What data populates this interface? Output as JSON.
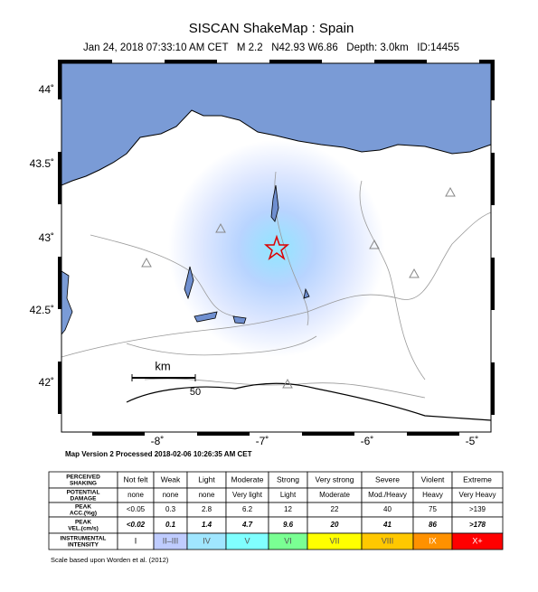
{
  "header": {
    "title": "SISCAN ShakeMap : Spain",
    "subtitle": "Jan 24, 2018 07:33:10 AM CET   M 2.2   N42.93 W6.86   Depth: 3.0km   ID:14455"
  },
  "map": {
    "lat_ticks": [
      "44˚",
      "43.5˚",
      "43˚",
      "42.5˚",
      "42˚"
    ],
    "lon_ticks": [
      "-8˚",
      "-7˚",
      "-6˚",
      "-5˚"
    ],
    "scale_label": "km",
    "scale_value": "50"
  },
  "version": "Map Version 2 Processed 2018-02-06 10:26:35 AM CET",
  "legend": {
    "rows": [
      [
        "PERCEIVED SHAKING",
        "Not felt",
        "Weak",
        "Light",
        "Moderate",
        "Strong",
        "Very strong",
        "Severe",
        "Violent",
        "Extreme"
      ],
      [
        "POTENTIAL DAMAGE",
        "none",
        "none",
        "none",
        "Very light",
        "Light",
        "Moderate",
        "Mod./Heavy",
        "Heavy",
        "Very Heavy"
      ],
      [
        "PEAK ACC.(%g)",
        "<0.05",
        "0.3",
        "2.8",
        "6.2",
        "12",
        "22",
        "40",
        "75",
        ">139"
      ],
      [
        "PEAK VEL.(cm/s)",
        "<0.02",
        "0.1",
        "1.4",
        "4.7",
        "9.6",
        "20",
        "41",
        "86",
        ">178"
      ],
      [
        "INSTRUMENTAL INTENSITY",
        "I",
        "II–III",
        "IV",
        "V",
        "VI",
        "VII",
        "VIII",
        "IX",
        "X+"
      ]
    ],
    "intensity_colors": [
      "#ffffff",
      "#bfccff",
      "#a0e6ff",
      "#80ffff",
      "#7aff93",
      "#ffff00",
      "#ffc800",
      "#ff9100",
      "#ff0000",
      "#c80000"
    ]
  },
  "footnote": "Scale based upon Worden et al. (2012)"
}
